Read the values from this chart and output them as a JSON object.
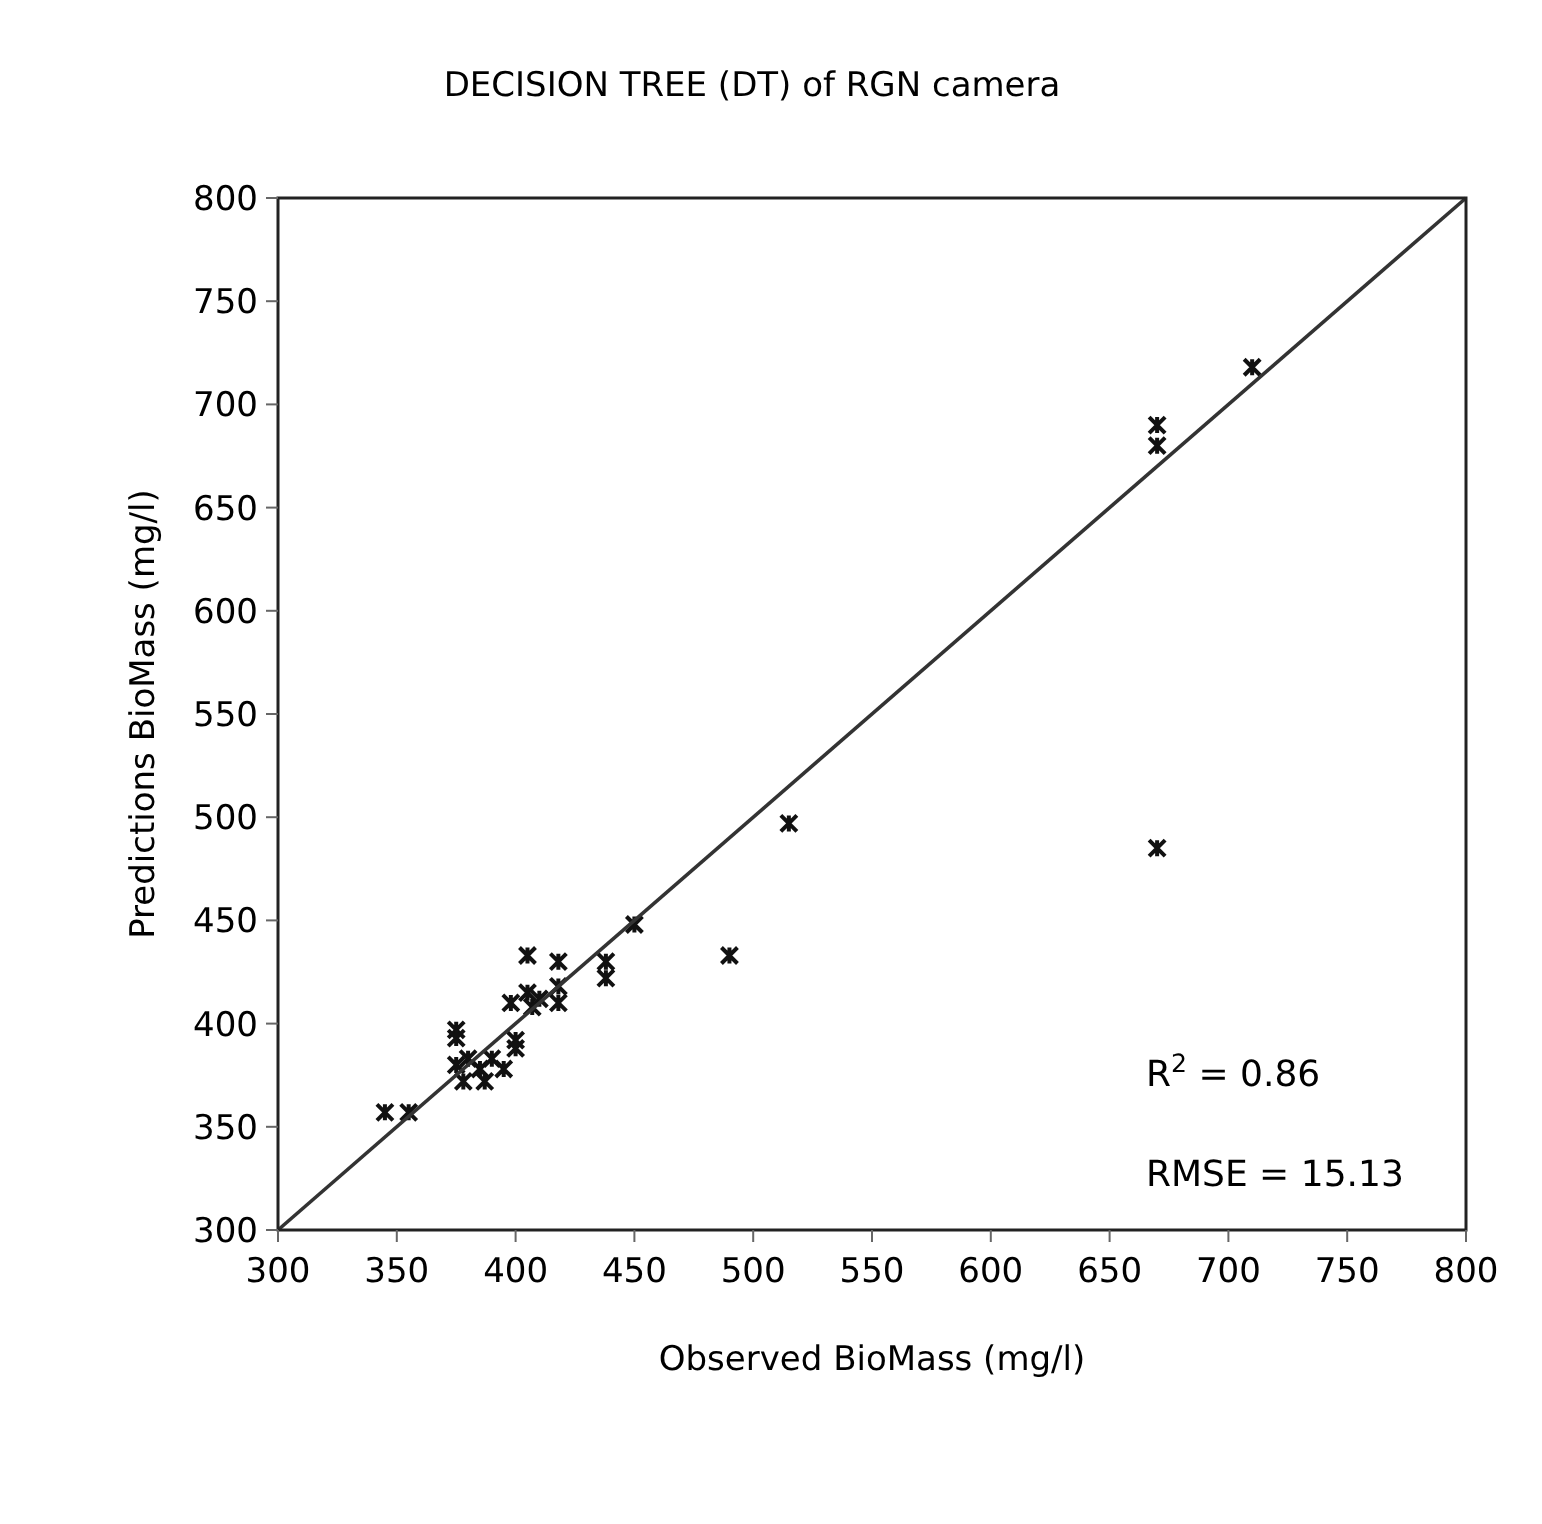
{
  "chart_data": {
    "type": "scatter",
    "title": "DECISION TREE (DT) of  RGN camera",
    "xlabel": "Observed BioMass (mg/l)",
    "ylabel": "Predictions BioMass (mg/l)",
    "xlim": [
      300,
      800
    ],
    "ylim": [
      300,
      800
    ],
    "xticks": [
      300,
      350,
      400,
      450,
      500,
      550,
      600,
      650,
      700,
      750,
      800
    ],
    "yticks": [
      300,
      350,
      400,
      450,
      500,
      550,
      600,
      650,
      700,
      750,
      800
    ],
    "grid": false,
    "series": [
      {
        "marker": "cross",
        "color": "#111111",
        "x": [
          345,
          355,
          375,
          375,
          375,
          378,
          380,
          385,
          387,
          390,
          395,
          398,
          400,
          400,
          405,
          405,
          407,
          410,
          418,
          418,
          418,
          438,
          438,
          450,
          490,
          515,
          670,
          670,
          670,
          710
        ],
        "values": [
          357,
          357,
          397,
          393,
          380,
          372,
          383,
          378,
          372,
          383,
          378,
          410,
          392,
          388,
          433,
          415,
          408,
          412,
          430,
          418,
          410,
          430,
          422,
          448,
          433,
          497,
          690,
          680,
          485,
          718
        ]
      },
      {
        "type": "line",
        "marker": "none",
        "color": "#333333",
        "x": [
          300,
          800
        ],
        "values": [
          300,
          800
        ]
      }
    ],
    "annotations": [
      "R$^{2}$ = 0.86",
      "RMSE = 15.13"
    ]
  }
}
